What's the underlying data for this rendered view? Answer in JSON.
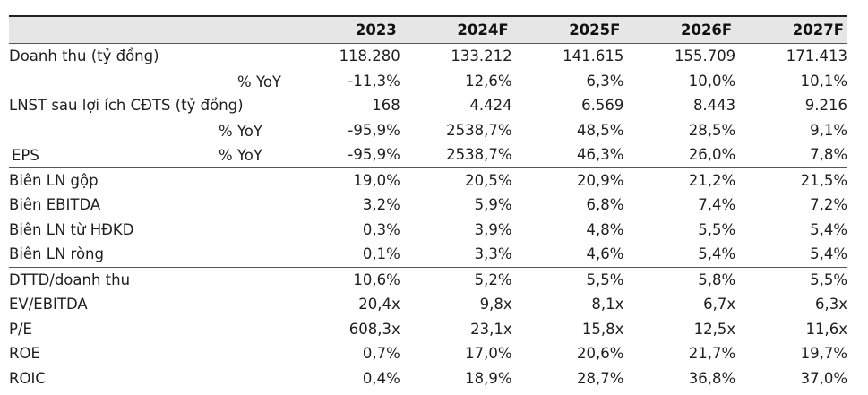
{
  "headers": [
    "",
    "2023",
    "2024F",
    "2025F",
    "2026F",
    "2027F"
  ],
  "rows": [
    {
      "label": "Doanh thu (tỷ đồng)",
      "values": [
        "118.280",
        "133.212",
        "141.615",
        "155.709",
        "171.413"
      ]
    },
    {
      "label": "% YoY",
      "values": [
        "-11,3%",
        "12,6%",
        "6,3%",
        "10,0%",
        "10,1%"
      ]
    },
    {
      "label": "LNST sau lợi ích CĐTS (tỷ đồng)",
      "values": [
        "168",
        "4.424",
        "6.569",
        "8.443",
        "9.216"
      ]
    },
    {
      "label": "% YoY",
      "values": [
        "-95,9%",
        "2538,7%",
        "48,5%",
        "28,5%",
        "9,1%"
      ]
    },
    {
      "label": "EPS",
      "sublabel": "% YoY",
      "values": [
        "-95,9%",
        "2538,7%",
        "46,3%",
        "26,0%",
        "7,8%"
      ]
    },
    {
      "label": "Biên LN gộp",
      "values": [
        "19,0%",
        "20,5%",
        "20,9%",
        "21,2%",
        "21,5%"
      ]
    },
    {
      "label": "Biên EBITDA",
      "values": [
        "3,2%",
        "5,9%",
        "6,8%",
        "7,4%",
        "7,2%"
      ]
    },
    {
      "label": "Biên LN từ HĐKD",
      "values": [
        "0,3%",
        "3,9%",
        "4,8%",
        "5,5%",
        "5,4%"
      ]
    },
    {
      "label": "Biên LN ròng",
      "values": [
        "0,1%",
        "3,3%",
        "4,6%",
        "5,4%",
        "5,4%"
      ]
    },
    {
      "label": "DTTD/doanh thu",
      "values": [
        "10,6%",
        "5,2%",
        "5,5%",
        "5,8%",
        "5,5%"
      ]
    },
    {
      "label": "EV/EBITDA",
      "values": [
        "20,4x",
        "9,8x",
        "8,1x",
        "6,7x",
        "6,3x"
      ]
    },
    {
      "label": "P/E",
      "values": [
        "608,3x",
        "23,1x",
        "15,8x",
        "12,5x",
        "11,6x"
      ]
    },
    {
      "label": "ROE",
      "values": [
        "0,7%",
        "17,0%",
        "20,6%",
        "21,7%",
        "19,7%"
      ]
    },
    {
      "label": "ROIC",
      "values": [
        "0,4%",
        "18,9%",
        "28,7%",
        "36,8%",
        "37,0%"
      ]
    }
  ]
}
